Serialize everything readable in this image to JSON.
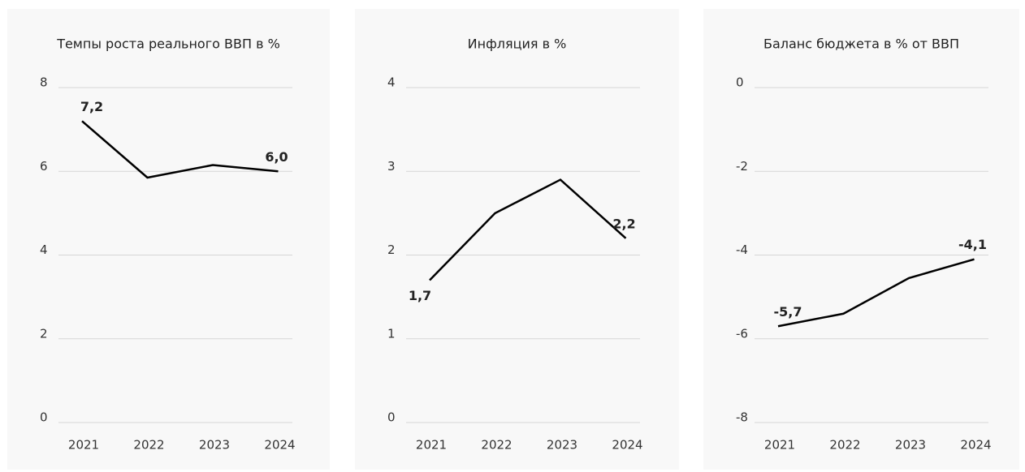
{
  "chart_data": [
    {
      "type": "line",
      "title": "Темпы роста реального ВВП в %",
      "categories": [
        "2021",
        "2022",
        "2023",
        "2024"
      ],
      "series": [
        {
          "color": "#000000",
          "values": [
            7.2,
            5.85,
            6.15,
            6.0
          ],
          "value_labels": [
            "7,2",
            null,
            null,
            "6,0"
          ]
        }
      ],
      "ylim": [
        0,
        8
      ],
      "yticks": [
        0,
        2,
        4,
        6,
        8
      ],
      "grid": true
    },
    {
      "type": "line",
      "title": "Инфляция в %",
      "categories": [
        "2021",
        "2022",
        "2023",
        "2024"
      ],
      "series": [
        {
          "color": "#000000",
          "values": [
            1.7,
            2.5,
            2.9,
            2.2
          ],
          "value_labels": [
            "1,7",
            null,
            null,
            "2,2"
          ]
        }
      ],
      "ylim": [
        0,
        4
      ],
      "yticks": [
        0,
        1,
        2,
        3,
        4
      ],
      "grid": true
    },
    {
      "type": "line",
      "title": "Баланс бюджета в % от ВВП",
      "categories": [
        "2021",
        "2022",
        "2023",
        "2024"
      ],
      "series": [
        {
          "color": "#000000",
          "values": [
            -5.7,
            -5.4,
            -4.55,
            -4.1
          ],
          "value_labels": [
            "-5,7",
            null,
            null,
            "-4,1"
          ]
        }
      ],
      "ylim": [
        -8,
        0
      ],
      "yticks": [
        -8,
        -6,
        -4,
        -2,
        0
      ],
      "grid": true
    }
  ]
}
